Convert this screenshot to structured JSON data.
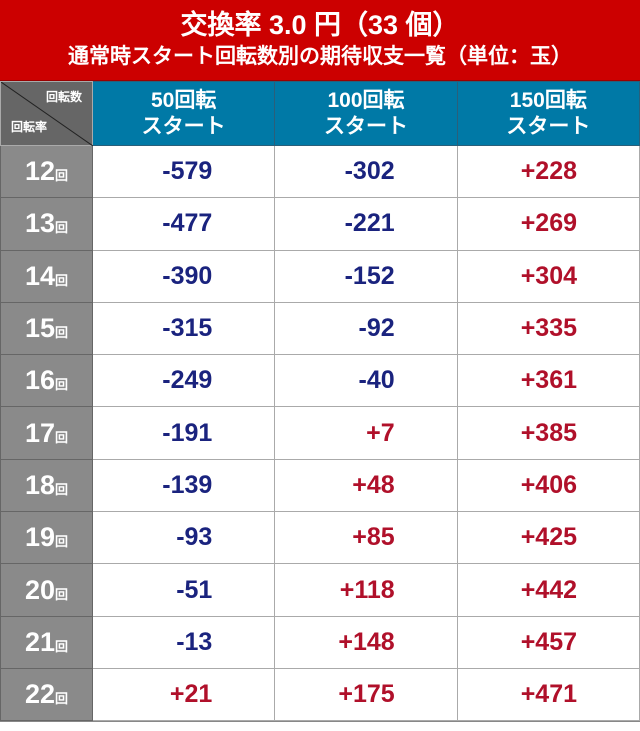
{
  "title": {
    "line1": "交換率 3.0 円（33 個）",
    "line2": "通常時スタート回転数別の期待収支一覧（単位：玉）"
  },
  "corner": {
    "top": "回転数",
    "bottom": "回転率"
  },
  "columns": [
    {
      "l1": "50回転",
      "l2": "スタート"
    },
    {
      "l1": "100回転",
      "l2": "スタート"
    },
    {
      "l1": "150回転",
      "l2": "スタート"
    }
  ],
  "row_unit": "回",
  "rows": [
    {
      "rate": "12",
      "values": [
        "-579",
        "-302",
        "+228"
      ]
    },
    {
      "rate": "13",
      "values": [
        "-477",
        "-221",
        "+269"
      ]
    },
    {
      "rate": "14",
      "values": [
        "-390",
        "-152",
        "+304"
      ]
    },
    {
      "rate": "15",
      "values": [
        "-315",
        "-92",
        "+335"
      ]
    },
    {
      "rate": "16",
      "values": [
        "-249",
        "-40",
        "+361"
      ]
    },
    {
      "rate": "17",
      "values": [
        "-191",
        "+7",
        "+385"
      ]
    },
    {
      "rate": "18",
      "values": [
        "-139",
        "+48",
        "+406"
      ]
    },
    {
      "rate": "19",
      "values": [
        "-93",
        "+85",
        "+425"
      ]
    },
    {
      "rate": "20",
      "values": [
        "-51",
        "+118",
        "+442"
      ]
    },
    {
      "rate": "21",
      "values": [
        "-13",
        "+148",
        "+457"
      ]
    },
    {
      "rate": "22",
      "values": [
        "+21",
        "+175",
        "+471"
      ]
    }
  ],
  "colors": {
    "title_bg": "#cc0000",
    "header_bg": "#0079a6",
    "negative": "#1a237e",
    "positive": "#b0102a"
  }
}
